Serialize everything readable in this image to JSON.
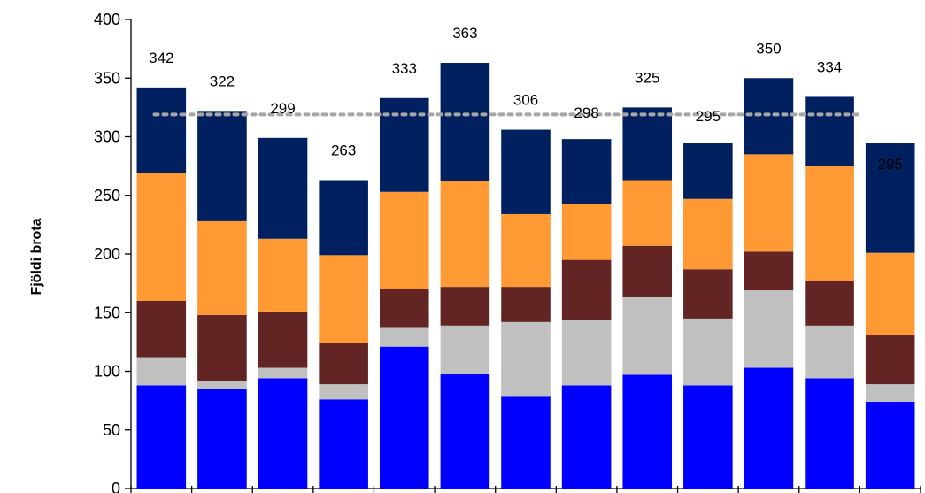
{
  "chart_data": {
    "type": "bar",
    "stacked": true,
    "ylabel": "Fjöldi brota",
    "ylim": [
      0,
      400
    ],
    "yticks": [
      0,
      50,
      100,
      150,
      200,
      250,
      300,
      350,
      400
    ],
    "categories": [
      "",
      "",
      "",
      "",
      "",
      "",
      "",
      "",
      "",
      "",
      "",
      "",
      ""
    ],
    "series": [
      {
        "color": "#0000ff",
        "values": [
          88,
          85,
          94,
          76,
          121,
          98,
          79,
          88,
          97,
          88,
          103,
          94,
          74
        ]
      },
      {
        "color": "#c0c0c0",
        "values": [
          24,
          7,
          9,
          13,
          16,
          41,
          63,
          56,
          66,
          57,
          66,
          45,
          15
        ]
      },
      {
        "color": "#632523",
        "values": [
          48,
          56,
          48,
          35,
          33,
          33,
          30,
          51,
          44,
          42,
          33,
          38,
          42
        ]
      },
      {
        "color": "#ff9933",
        "values": [
          109,
          80,
          62,
          75,
          83,
          90,
          62,
          48,
          56,
          60,
          83,
          98,
          70
        ]
      },
      {
        "color": "#002060",
        "values": [
          73,
          94,
          86,
          64,
          80,
          101,
          72,
          55,
          62,
          48,
          65,
          59,
          94
        ]
      }
    ],
    "totals": [
      342,
      322,
      299,
      263,
      333,
      363,
      306,
      298,
      325,
      295,
      350,
      334,
      295
    ],
    "reference_line": {
      "value": 319,
      "style": "dotted",
      "color": "#a6a6a6"
    },
    "grid": false,
    "legend": "none"
  }
}
